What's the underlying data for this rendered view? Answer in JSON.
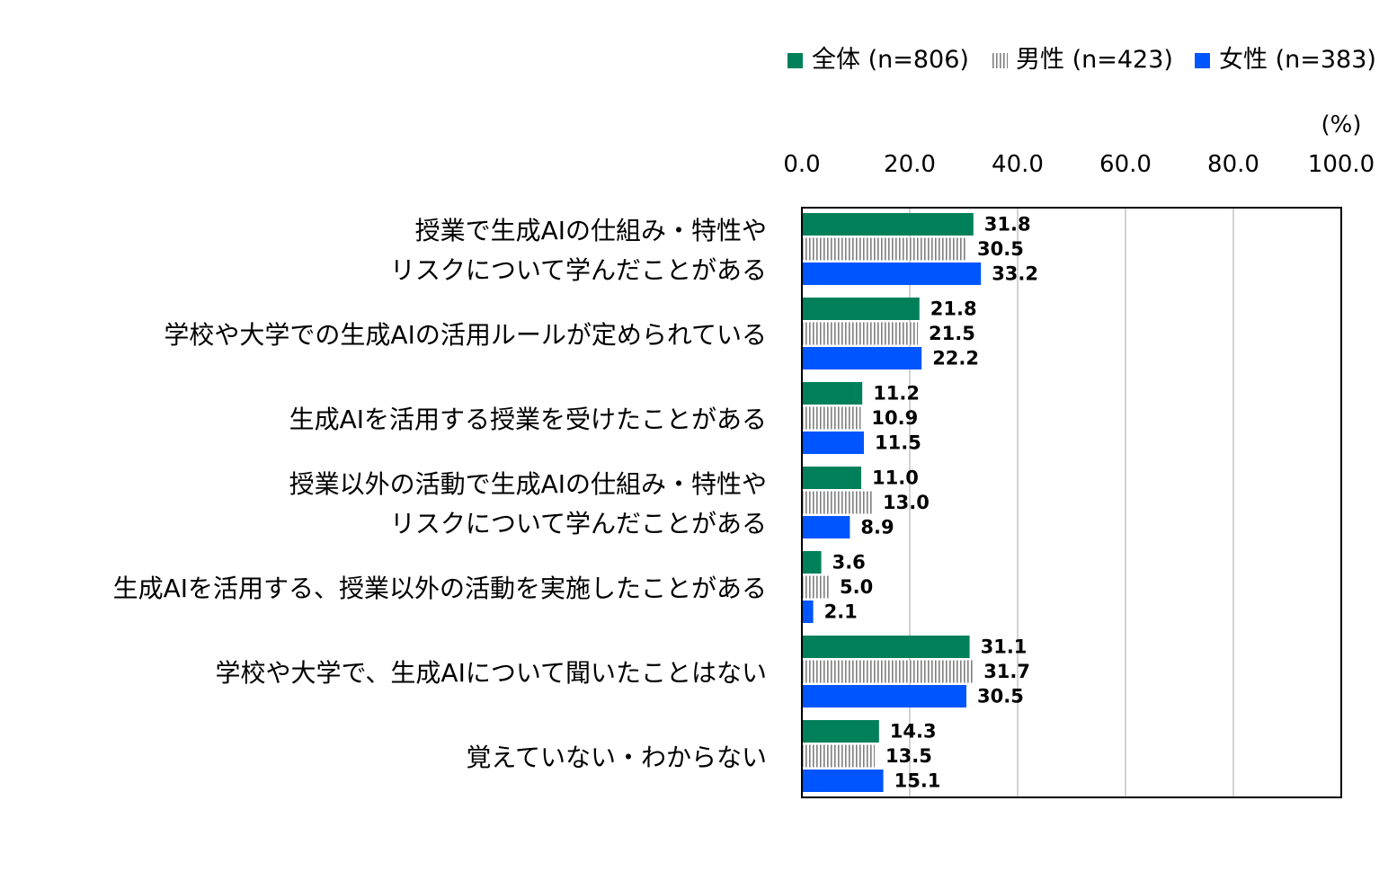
{
  "chart_data": {
    "type": "bar",
    "orientation": "horizontal",
    "unit_label": "(%)",
    "xlim": [
      0,
      100
    ],
    "ticks": [
      "0.0",
      "20.0",
      "40.0",
      "60.0",
      "80.0",
      "100.0"
    ],
    "legend_position": "top-right",
    "categories": [
      [
        "授業で生成AIの仕組み・特性や",
        "リスクについて学んだことがある"
      ],
      [
        "学校や大学での生成AIの活用ルールが定められている"
      ],
      [
        "生成AIを活用する授業を受けたことがある"
      ],
      [
        "授業以外の活動で生成AIの仕組み・特性や",
        "リスクについて学んだことがある"
      ],
      [
        "生成AIを活用する、授業以外の活動を実施したことがある"
      ],
      [
        "学校や大学で、生成AIについて聞いたことはない"
      ],
      [
        "覚えていない・わからない"
      ]
    ],
    "series": [
      {
        "name": "全体 (n=806)",
        "color": "#00805a",
        "pattern": "solid",
        "values": [
          31.8,
          21.8,
          11.2,
          11.0,
          3.6,
          31.1,
          14.3
        ],
        "labels": [
          "31.8",
          "21.8",
          "11.2",
          "11.0",
          "3.6",
          "31.1",
          "14.3"
        ]
      },
      {
        "name": "男性 (n=423)",
        "color": "#7f7f7f",
        "pattern": "vertical-stripes",
        "values": [
          30.5,
          21.5,
          10.9,
          13.0,
          5.0,
          31.7,
          13.5
        ],
        "labels": [
          "30.5",
          "21.5",
          "10.9",
          "13.0",
          "5.0",
          "31.7",
          "13.5"
        ]
      },
      {
        "name": "女性 (n=383)",
        "color": "#0055ff",
        "pattern": "solid",
        "values": [
          33.2,
          22.2,
          11.5,
          8.9,
          2.1,
          30.5,
          15.1
        ],
        "labels": [
          "33.2",
          "22.2",
          "11.5",
          "8.9",
          "2.1",
          "30.5",
          "15.1"
        ]
      }
    ]
  }
}
